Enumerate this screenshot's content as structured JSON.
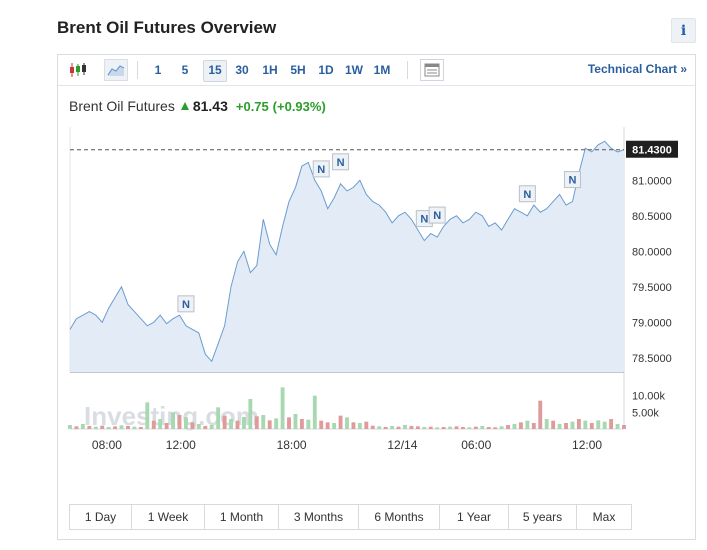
{
  "page": {
    "title": "Brent Oil Futures Overview",
    "info_label": "i"
  },
  "toolbar": {
    "intervals": [
      "1",
      "5",
      "15",
      "30",
      "1H",
      "5H",
      "1D",
      "1W",
      "1M"
    ],
    "active_interval": "15",
    "technical_link": "Technical Chart »"
  },
  "quote": {
    "name": "Brent Oil Futures",
    "price": "81.43",
    "change": "+0.75",
    "change_pct": "(+0.93%)",
    "direction": "up"
  },
  "colors": {
    "up": "#2a9d2a",
    "line": "#6a9cd0",
    "fill": "#e3ecf6",
    "link": "#2a5f9e",
    "vol_up": "#a8d8b0",
    "vol_down": "#e09a9a"
  },
  "chart_data": {
    "type": "area",
    "title": "Brent Oil Futures",
    "ylim": [
      78.3,
      81.75
    ],
    "y_ticks": [
      "81.0000",
      "80.5000",
      "80.0000",
      "79.5000",
      "79.0000",
      "78.5000"
    ],
    "y_tick_values": [
      81.0,
      80.5,
      80.0,
      79.5,
      79.0,
      78.5
    ],
    "x_ticks": [
      "08:00",
      "12:00",
      "18:00",
      "12/14",
      "06:00",
      "12:00"
    ],
    "x_tick_index": [
      2,
      6,
      12,
      18,
      22,
      28
    ],
    "last_value_label": "81.4300",
    "last_value": 81.43,
    "series": [
      {
        "values": [
          78.9,
          79.05,
          79.1,
          79.15,
          79.1,
          79.0,
          79.2,
          79.35,
          79.5,
          79.25,
          79.15,
          79.05,
          78.95,
          79.0,
          79.1,
          78.98,
          79.05,
          79.1,
          78.95,
          78.9,
          78.85,
          78.55,
          78.45,
          78.7,
          78.95,
          79.5,
          79.85,
          80.0,
          79.7,
          79.8,
          80.45,
          80.1,
          79.95,
          80.35,
          80.7,
          80.9,
          81.2,
          81.25,
          81.0,
          80.85,
          80.6,
          80.75,
          80.95,
          80.85,
          80.9,
          81.0,
          80.8,
          80.7,
          80.65,
          80.55,
          80.4,
          80.5,
          80.55,
          80.45,
          80.3,
          80.15,
          80.25,
          80.2,
          80.35,
          80.45,
          80.5,
          80.4,
          80.45,
          80.55,
          80.5,
          80.35,
          80.4,
          80.3,
          80.45,
          80.6,
          80.55,
          80.5,
          80.65,
          80.55,
          80.6,
          80.7,
          80.8,
          80.65,
          80.7,
          81.1,
          81.45,
          81.4,
          81.5,
          81.55,
          81.45,
          81.4,
          81.43
        ]
      }
    ],
    "volume_ticks": [
      "10.00k",
      "5.00k"
    ],
    "volume_tick_values": [
      10000,
      5000
    ],
    "volume_max": 12000,
    "volume": [
      1200,
      800,
      1500,
      900,
      700,
      1000,
      600,
      800,
      1100,
      900,
      700,
      600,
      8000,
      2500,
      3000,
      1800,
      5000,
      4200,
      3500,
      2000,
      1500,
      900,
      1200,
      6500,
      4000,
      3000,
      2500,
      3600,
      9000,
      3800,
      4200,
      2600,
      3200,
      12500,
      3500,
      4500,
      3000,
      2800,
      10000,
      2500,
      2000,
      1800,
      4000,
      3500,
      2000,
      1800,
      2200,
      1000,
      800,
      600,
      900,
      700,
      1200,
      900,
      800,
      600,
      700,
      500,
      600,
      700,
      800,
      600,
      500,
      700,
      900,
      600,
      500,
      800,
      1200,
      1500,
      2000,
      2500,
      1800,
      8500,
      3000,
      2500,
      1500,
      1800,
      2200,
      3000,
      2500,
      1800,
      2600,
      2200,
      3000,
      1500,
      1200
    ],
    "volume_up": [
      true,
      false,
      true,
      false,
      true,
      false,
      true,
      false,
      true,
      false,
      true,
      false,
      true,
      false,
      true,
      false,
      true,
      false,
      true,
      false,
      true,
      false,
      true,
      true,
      false,
      true,
      false,
      true,
      true,
      false,
      true,
      false,
      true,
      true,
      false,
      true,
      false,
      true,
      true,
      false,
      false,
      true,
      false,
      true,
      false,
      true,
      false,
      false,
      true,
      false,
      true,
      false,
      true,
      false,
      false,
      true,
      false,
      true,
      false,
      true,
      false,
      false,
      true,
      false,
      true,
      false,
      false,
      true,
      false,
      true,
      false,
      true,
      false,
      false,
      true,
      false,
      true,
      false,
      true,
      false,
      true,
      false,
      true,
      true,
      false,
      true,
      false
    ],
    "news_markers": [
      {
        "index": 18,
        "label": "N"
      },
      {
        "index": 39,
        "label": "N"
      },
      {
        "index": 42,
        "label": "N"
      },
      {
        "index": 55,
        "label": "N"
      },
      {
        "index": 57,
        "label": "N"
      },
      {
        "index": 71,
        "label": "N"
      },
      {
        "index": 78,
        "label": "N"
      }
    ],
    "watermark": "Investing.com"
  },
  "ranges": [
    "1 Day",
    "1 Week",
    "1 Month",
    "3 Months",
    "6 Months",
    "1 Year",
    "5 years",
    "Max"
  ]
}
